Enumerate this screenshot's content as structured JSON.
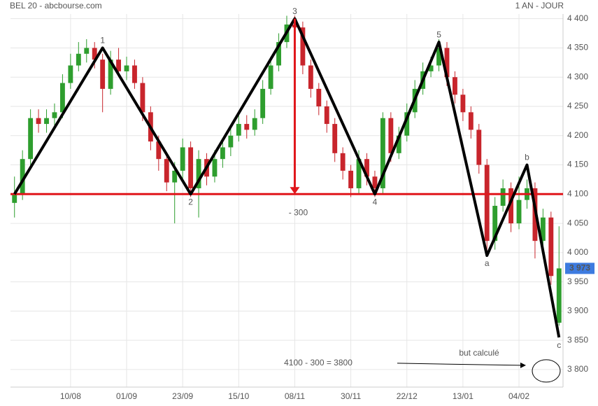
{
  "chart_data": {
    "type": "candlestick",
    "title": "BEL 20 - abcbourse.com",
    "period": "1 AN - JOUR",
    "categories": [
      null,
      null,
      null,
      null,
      null,
      null,
      null,
      "10/08",
      null,
      null,
      null,
      null,
      null,
      null,
      "01/09",
      null,
      null,
      null,
      null,
      null,
      null,
      "23/09",
      null,
      null,
      null,
      null,
      null,
      null,
      "15/10",
      null,
      null,
      null,
      null,
      null,
      null,
      "08/11",
      null,
      null,
      null,
      null,
      null,
      null,
      "30/11",
      null,
      null,
      null,
      null,
      null,
      null,
      "22/12",
      null,
      null,
      null,
      null,
      null,
      null,
      "13/01",
      null,
      null,
      null,
      null,
      null,
      null,
      "04/02",
      null,
      null,
      null,
      null,
      null
    ],
    "open": [
      4085,
      4100,
      4160,
      4230,
      4220,
      4230,
      4240,
      4290,
      4320,
      4340,
      4350,
      4330,
      4280,
      4330,
      4310,
      4320,
      4290,
      4240,
      4190,
      4160,
      4120,
      4140,
      4180,
      4110,
      4160,
      4130,
      4160,
      4180,
      4200,
      4220,
      4210,
      4230,
      4280,
      4320,
      4360,
      4390,
      4385,
      4320,
      4280,
      4250,
      4220,
      4170,
      4140,
      4110,
      4160,
      4130,
      4110,
      4230,
      4170,
      4200,
      4240,
      4280,
      4310,
      4320,
      4350,
      4300,
      4270,
      4240,
      4210,
      4150,
      4020,
      4080,
      4110,
      4050,
      4090,
      4110,
      4020,
      4060,
      3880
    ],
    "high": [
      4130,
      4175,
      4245,
      4245,
      4245,
      4255,
      4305,
      4340,
      4360,
      4365,
      4360,
      4340,
      4345,
      4350,
      4335,
      4330,
      4300,
      4250,
      4200,
      4170,
      4155,
      4195,
      4190,
      4175,
      4170,
      4175,
      4195,
      4215,
      4235,
      4235,
      4245,
      4295,
      4335,
      4375,
      4405,
      4405,
      4395,
      4330,
      4290,
      4260,
      4230,
      4180,
      4150,
      4175,
      4170,
      4140,
      4240,
      4240,
      4215,
      4255,
      4295,
      4325,
      4335,
      4365,
      4360,
      4310,
      4280,
      4250,
      4220,
      4160,
      4095,
      4125,
      4120,
      4130,
      4125,
      4120,
      4075,
      4070,
      4045
    ],
    "low": [
      4060,
      4090,
      4150,
      4205,
      4205,
      4215,
      4230,
      4280,
      4310,
      4325,
      4315,
      4240,
      4270,
      4300,
      4295,
      4280,
      4225,
      4175,
      4140,
      4105,
      4050,
      4125,
      4095,
      4060,
      4115,
      4120,
      4145,
      4165,
      4190,
      4195,
      4200,
      4220,
      4270,
      4310,
      4350,
      4370,
      4305,
      4265,
      4235,
      4205,
      4155,
      4125,
      4095,
      4100,
      4115,
      4095,
      4100,
      4155,
      4160,
      4190,
      4230,
      4270,
      4300,
      4310,
      4285,
      4255,
      4225,
      4195,
      4135,
      3995,
      4005,
      4070,
      4035,
      4040,
      4075,
      3990,
      4005,
      3945,
      3875
    ],
    "close": [
      4100,
      4160,
      4230,
      4220,
      4230,
      4240,
      4290,
      4320,
      4340,
      4350,
      4330,
      4280,
      4330,
      4310,
      4320,
      4290,
      4240,
      4190,
      4160,
      4120,
      4140,
      4180,
      4110,
      4160,
      4130,
      4160,
      4180,
      4200,
      4220,
      4210,
      4230,
      4280,
      4320,
      4360,
      4390,
      4385,
      4320,
      4280,
      4250,
      4220,
      4170,
      4140,
      4110,
      4160,
      4130,
      4110,
      4230,
      4170,
      4200,
      4240,
      4280,
      4310,
      4320,
      4350,
      4300,
      4270,
      4240,
      4210,
      4150,
      4020,
      4080,
      4110,
      4050,
      4090,
      4110,
      4020,
      4060,
      3960,
      3973
    ],
    "up_color": "#2e9e2e",
    "down_color": "#c8252c",
    "ylim": [
      3770,
      4408
    ],
    "yticks": [
      {
        "value": 3800,
        "label": "3 800"
      },
      {
        "value": 3850,
        "label": "3 850"
      },
      {
        "value": 3900,
        "label": "3 900"
      },
      {
        "value": 3950,
        "label": "3 950"
      },
      {
        "value": 4000,
        "label": "4 000"
      },
      {
        "value": 4050,
        "label": "4 050"
      },
      {
        "value": 4100,
        "label": "4 100"
      },
      {
        "value": 4150,
        "label": "4 150"
      },
      {
        "value": 4200,
        "label": "4 200"
      },
      {
        "value": 4250,
        "label": "4 250"
      },
      {
        "value": 4300,
        "label": "4 300"
      },
      {
        "value": 4350,
        "label": "4 350"
      },
      {
        "value": 4400,
        "label": "4 400"
      }
    ],
    "grid": true,
    "last_price": {
      "value": 3973,
      "label": "3 973",
      "color": "#3d7be0"
    },
    "wave": {
      "color": "#000000",
      "x": [
        0,
        11,
        22,
        35,
        45,
        53,
        59,
        64,
        68
      ],
      "values": [
        4100,
        4350,
        4100,
        4400,
        4100,
        4360,
        3995,
        4150,
        3855
      ],
      "labels": [
        null,
        "1",
        "2",
        "3",
        "4",
        "5",
        "a",
        "b",
        "c"
      ]
    },
    "level": {
      "value": 4100,
      "color": "#e0161b"
    },
    "arrow": {
      "x": 35,
      "from": 4400,
      "to": 4100,
      "label": "- 300",
      "color": "#e0161b"
    },
    "formula": "4100 - 300 = 3800",
    "target": {
      "value": 3800,
      "label": "but calculé"
    }
  }
}
